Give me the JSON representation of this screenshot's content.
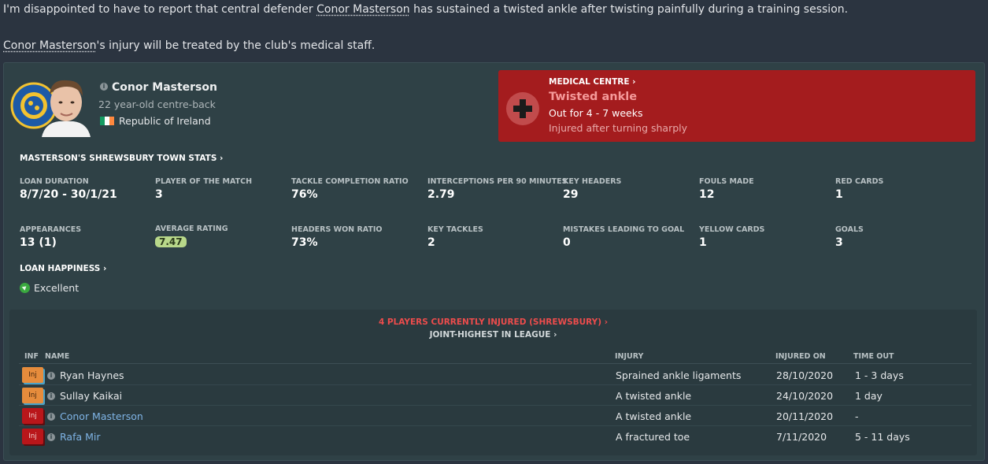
{
  "message": {
    "line1_pre": "I'm disappointed to have to report that central defender ",
    "line1_player": "Conor Masterson",
    "line1_post": " has sustained a twisted ankle after twisting painfully during a training session.",
    "line2_player": "Conor Masterson",
    "line2_post": "'s injury will be treated by the club's medical staff."
  },
  "player": {
    "name": "Conor Masterson",
    "age_position": "22 year-old centre-back",
    "nationality": "Republic of Ireland",
    "flag_colors": [
      "#169b62",
      "#ffffff",
      "#ff883e"
    ]
  },
  "medical": {
    "title": "MEDICAL CENTRE ›",
    "injury": "Twisted ankle",
    "out_for": "Out for 4 - 7 weeks",
    "description": "Injured after turning sharply",
    "color": "#a41c1e"
  },
  "stats": {
    "title": "MASTERSON'S SHREWSBURY TOWN STATS ›",
    "items": [
      {
        "label": "LOAN DURATION",
        "value": "8/7/20 - 30/1/21"
      },
      {
        "label": "PLAYER OF THE MATCH",
        "value": "3"
      },
      {
        "label": "TACKLE COMPLETION RATIO",
        "value": "76%"
      },
      {
        "label": "INTERCEPTIONS PER 90 MINUTES",
        "value": "2.79"
      },
      {
        "label": "KEY HEADERS",
        "value": "29"
      },
      {
        "label": "FOULS MADE",
        "value": "12"
      },
      {
        "label": "RED CARDS",
        "value": "1"
      },
      {
        "label": "APPEARANCES",
        "value": "13 (1)"
      },
      {
        "label": "AVERAGE RATING",
        "value": "7.47"
      },
      {
        "label": "HEADERS WON RATIO",
        "value": "73%"
      },
      {
        "label": "KEY TACKLES",
        "value": "2"
      },
      {
        "label": "MISTAKES LEADING TO GOAL",
        "value": "0"
      },
      {
        "label": "YELLOW CARDS",
        "value": "1"
      },
      {
        "label": "GOALS",
        "value": "3"
      }
    ]
  },
  "loan_happiness": {
    "title": "LOAN HAPPINESS ›",
    "value": "Excellent"
  },
  "injuries": {
    "header": "4 PLAYERS CURRENTLY INJURED (SHREWSBURY) ›",
    "subheader": "JOINT-HIGHEST IN LEAGUE ›",
    "columns": {
      "inf": "INF",
      "name": "NAME",
      "injury": "INJURY",
      "injured_on": "INJURED ON",
      "time_out": "TIME OUT"
    },
    "rows": [
      {
        "badge": "Inj",
        "name": "Ryan Haynes",
        "injury": "Sprained ankle ligaments",
        "injured_on": "28/10/2020",
        "time_out": "1 - 3 days"
      },
      {
        "badge": "Inj",
        "name": "Sullay Kaikai",
        "injury": "A twisted ankle",
        "injured_on": "24/10/2020",
        "time_out": "1 day"
      },
      {
        "badge": "Inj",
        "name": "Conor Masterson",
        "injury": "A twisted ankle",
        "injured_on": "20/11/2020",
        "time_out": "-"
      },
      {
        "badge": "Inj",
        "name": "Rafa Mir",
        "injury": "A fractured toe",
        "injured_on": "7/11/2020",
        "time_out": "5 - 11 days"
      }
    ]
  }
}
